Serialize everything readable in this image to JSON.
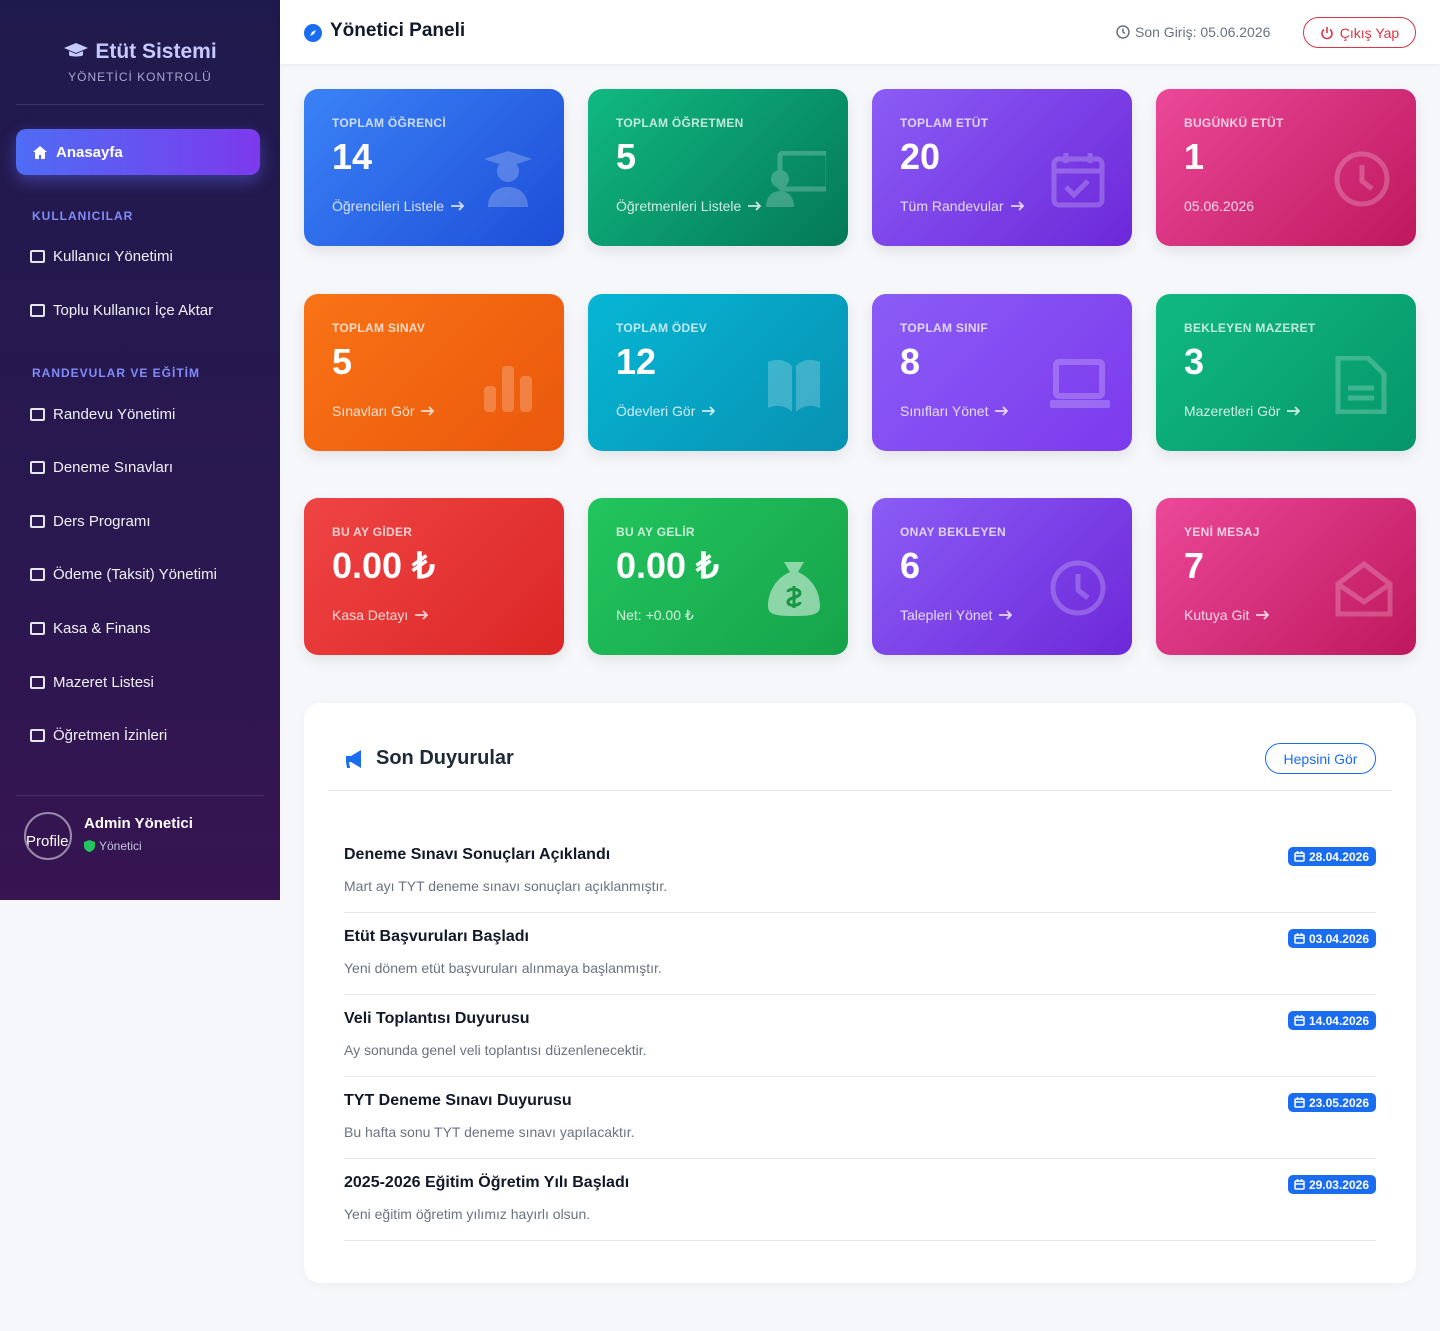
{
  "sidebar": {
    "brand": "Etüt Sistemi",
    "subtitle": "YÖNETİCİ KONTROLÜ",
    "active": "Anasayfa",
    "sections": [
      {
        "title": "KULLANICILAR",
        "items": [
          "Kullanıcı Yönetimi",
          "Toplu Kullanıcı İçe Aktar"
        ]
      },
      {
        "title": "RANDEVULAR VE EĞİTİM",
        "items": [
          "Randevu Yönetimi",
          "Deneme Sınavları",
          "Ders Programı",
          "Ödeme (Taksit) Yönetimi",
          "Kasa & Finans",
          "Mazeret Listesi",
          "Öğretmen İzinleri"
        ]
      }
    ],
    "profile": {
      "avatar_alt": "Profile",
      "name": "Admin Yönetici",
      "role": "Yönetici"
    }
  },
  "header": {
    "title": "Yönetici Paneli",
    "last_login": "Son Giriş: 05.06.2026",
    "logout": "Çıkış Yap"
  },
  "cards": [
    {
      "label": "TOPLAM ÖĞRENCİ",
      "value": 14,
      "link": "Öğrencileri Listele"
    },
    {
      "label": "TOPLAM ÖĞRETMEN",
      "value": 5,
      "link": "Öğretmenleri Listele"
    },
    {
      "label": "TOPLAM ETÜT",
      "value": 20,
      "link": "Tüm Randevular"
    },
    {
      "label": "BUGÜNKÜ ETÜT",
      "value": 1,
      "note": "05.06.2026"
    },
    {
      "label": "TOPLAM SINAV",
      "value": 5,
      "link": "Sınavları Gör"
    },
    {
      "label": "TOPLAM ÖDEV",
      "value": 12,
      "link": "Ödevleri Gör"
    },
    {
      "label": "TOPLAM SINIF",
      "value": 8,
      "link": "Sınıfları Yönet"
    },
    {
      "label": "BEKLEYEN MAZERET",
      "value": 3,
      "link": "Mazeretleri Gör"
    },
    {
      "label": "BU AY GİDER",
      "value": "0.00 ₺",
      "link": "Kasa Detayı"
    },
    {
      "label": "BU AY GELİR",
      "value": "0.00 ₺",
      "note": "Net: +0.00 ₺"
    },
    {
      "label": "ONAY BEKLEYEN",
      "value": 6,
      "link": "Talepleri Yönet"
    },
    {
      "label": "YENİ MESAJ",
      "value": 7,
      "link": "Kutuya Git"
    }
  ],
  "announcements": {
    "title": "Son Duyurular",
    "see_all": "Hepsini Gör",
    "items": [
      {
        "title": "Deneme Sınavı Sonuçları Açıklandı",
        "text": "Mart ayı TYT deneme sınavı sonuçları açıklanmıştır.",
        "date": "28.04.2026"
      },
      {
        "title": "Etüt Başvuruları Başladı",
        "text": "Yeni dönem etüt başvuruları alınmaya başlanmıştır.",
        "date": "03.04.2026"
      },
      {
        "title": "Veli Toplantısı Duyurusu",
        "text": "Ay sonunda genel veli toplantısı düzenlenecektir.",
        "date": "14.04.2026"
      },
      {
        "title": "TYT Deneme Sınavı Duyurusu",
        "text": "Bu hafta sonu TYT deneme sınavı yapılacaktır.",
        "date": "23.05.2026"
      },
      {
        "title": "2025-2026 Eğitim Öğretim Yılı Başladı",
        "text": "Yeni eğitim öğretim yılımız hayırlı olsun.",
        "date": "29.03.2026"
      }
    ]
  }
}
